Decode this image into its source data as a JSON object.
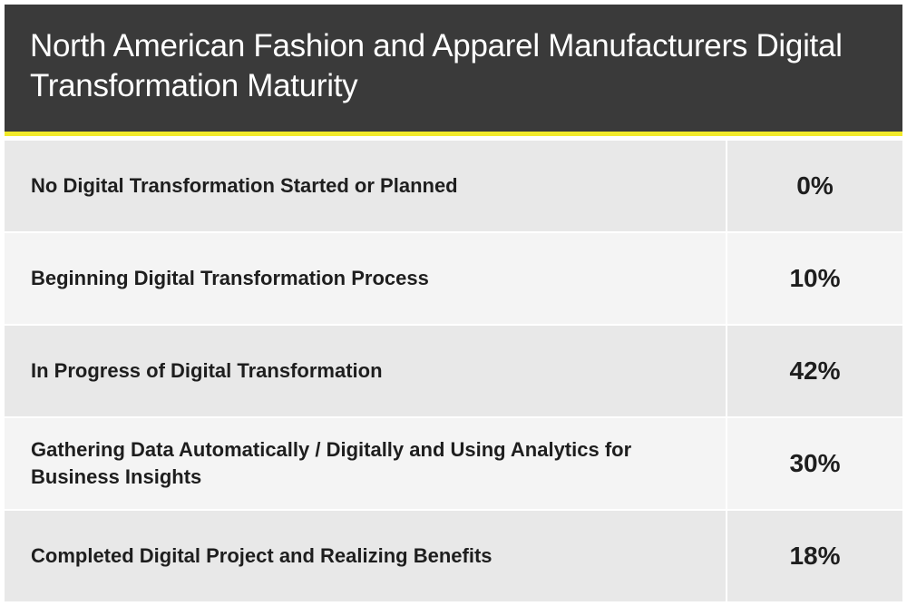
{
  "chart_data": {
    "type": "table",
    "title": "North American Fashion and Apparel Manufacturers Digital Transformation Maturity",
    "rows": [
      {
        "label": "No Digital Transformation Started or Planned",
        "value": "0%"
      },
      {
        "label": "Beginning Digital Transformation Process",
        "value": "10%"
      },
      {
        "label": "In Progress of Digital Transformation",
        "value": "42%"
      },
      {
        "label": "Gathering Data Automatically / Digitally and Using Analytics for Business Insights",
        "value": "30%"
      },
      {
        "label": "Completed Digital Project and Realizing Benefits",
        "value": "18%"
      }
    ]
  },
  "colors": {
    "header_background": "#3a3a3a",
    "accent": "#f2ea2a",
    "row_shade": "#e8e8e8",
    "row_light": "#f4f4f4",
    "text": "#1e1e1e"
  }
}
